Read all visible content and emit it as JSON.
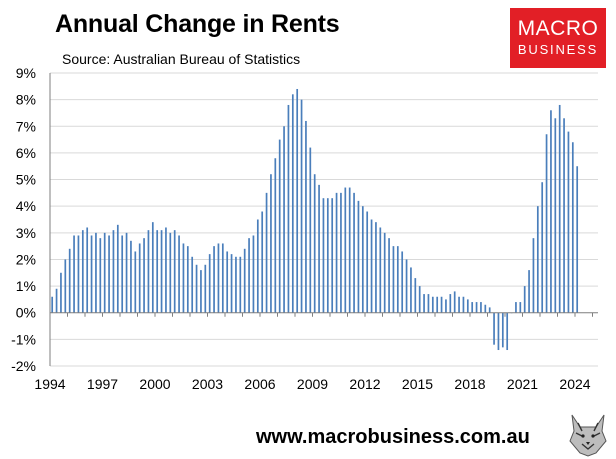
{
  "header": {
    "title": "Annual Change in Rents",
    "subtitle": "Source: Australian Bureau of Statistics"
  },
  "logo": {
    "line1": "MACRO",
    "line2": "BUSINESS",
    "color": "#e21f26"
  },
  "footer": {
    "website": "www.macrobusiness.com.au",
    "mascot_icon": "wolf-mascot-icon"
  },
  "chart_data": {
    "type": "bar",
    "title": "Annual Change in Rents",
    "subtitle": "Source: Australian Bureau of Statistics",
    "xlabel": "",
    "ylabel": "",
    "frequency": "quarterly",
    "x_start": "1994 Q1",
    "x_ticks": [
      "1994",
      "1997",
      "2000",
      "2003",
      "2006",
      "2009",
      "2012",
      "2015",
      "2018",
      "2021",
      "2024"
    ],
    "y_ticks": [
      "-2%",
      "-1%",
      "0%",
      "1%",
      "2%",
      "3%",
      "4%",
      "5%",
      "6%",
      "7%",
      "8%",
      "9%"
    ],
    "ylim": [
      -2,
      9
    ],
    "grid": true,
    "bar_color": "#4a7ebb",
    "grid_color": "#d9d9d9",
    "unit": "%",
    "values": [
      0.6,
      0.9,
      1.5,
      2.0,
      2.4,
      2.9,
      2.9,
      3.1,
      3.2,
      2.9,
      3.0,
      2.8,
      3.0,
      2.9,
      3.1,
      3.3,
      2.9,
      3.0,
      2.7,
      2.3,
      2.6,
      2.8,
      3.1,
      3.4,
      3.1,
      3.1,
      3.2,
      3.0,
      3.1,
      2.9,
      2.6,
      2.5,
      2.1,
      1.8,
      1.6,
      1.8,
      2.2,
      2.5,
      2.6,
      2.6,
      2.3,
      2.2,
      2.1,
      2.1,
      2.4,
      2.8,
      2.9,
      3.5,
      3.8,
      4.5,
      5.2,
      5.8,
      6.5,
      7.0,
      7.8,
      8.2,
      8.4,
      8.0,
      7.2,
      6.2,
      5.2,
      4.8,
      4.3,
      4.3,
      4.3,
      4.5,
      4.5,
      4.7,
      4.7,
      4.5,
      4.2,
      4.0,
      3.8,
      3.5,
      3.4,
      3.2,
      3.0,
      2.8,
      2.5,
      2.5,
      2.3,
      2.0,
      1.7,
      1.3,
      1.0,
      0.7,
      0.7,
      0.6,
      0.6,
      0.6,
      0.5,
      0.7,
      0.8,
      0.6,
      0.6,
      0.5,
      0.4,
      0.4,
      0.4,
      0.3,
      0.2,
      -1.2,
      -1.4,
      -1.3,
      -1.4,
      0.0,
      0.4,
      0.4,
      1.0,
      1.6,
      2.8,
      4.0,
      4.9,
      6.7,
      7.6,
      7.3,
      7.8,
      7.3,
      6.8,
      6.4,
      5.5
    ]
  }
}
